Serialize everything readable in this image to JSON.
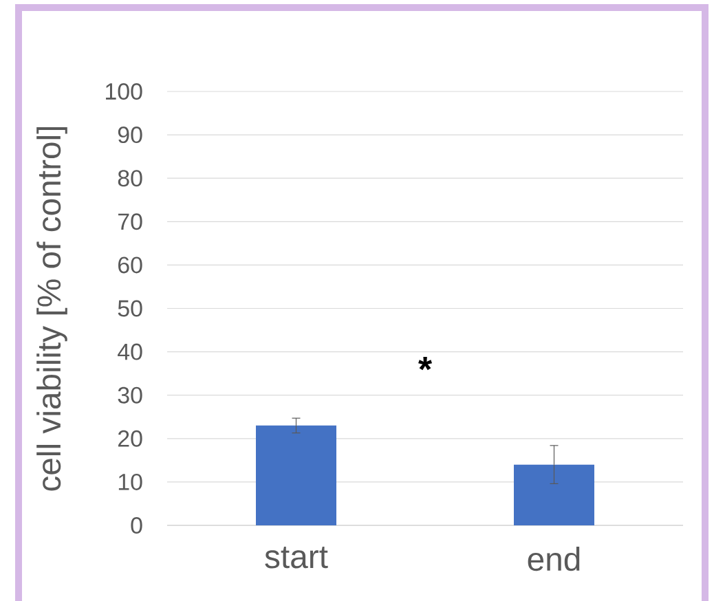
{
  "chart_data": {
    "type": "bar",
    "ylabel": "cell viability [% of control]",
    "categories": [
      "start",
      "end"
    ],
    "values": [
      23,
      14
    ],
    "errors": [
      1.7,
      4.4
    ],
    "color": "#4472c4",
    "ylim": [
      0,
      100
    ],
    "yticks": [
      0,
      10,
      20,
      30,
      40,
      50,
      60,
      70,
      80,
      90,
      100
    ],
    "grid": "y",
    "annotations": [
      "*"
    ]
  }
}
